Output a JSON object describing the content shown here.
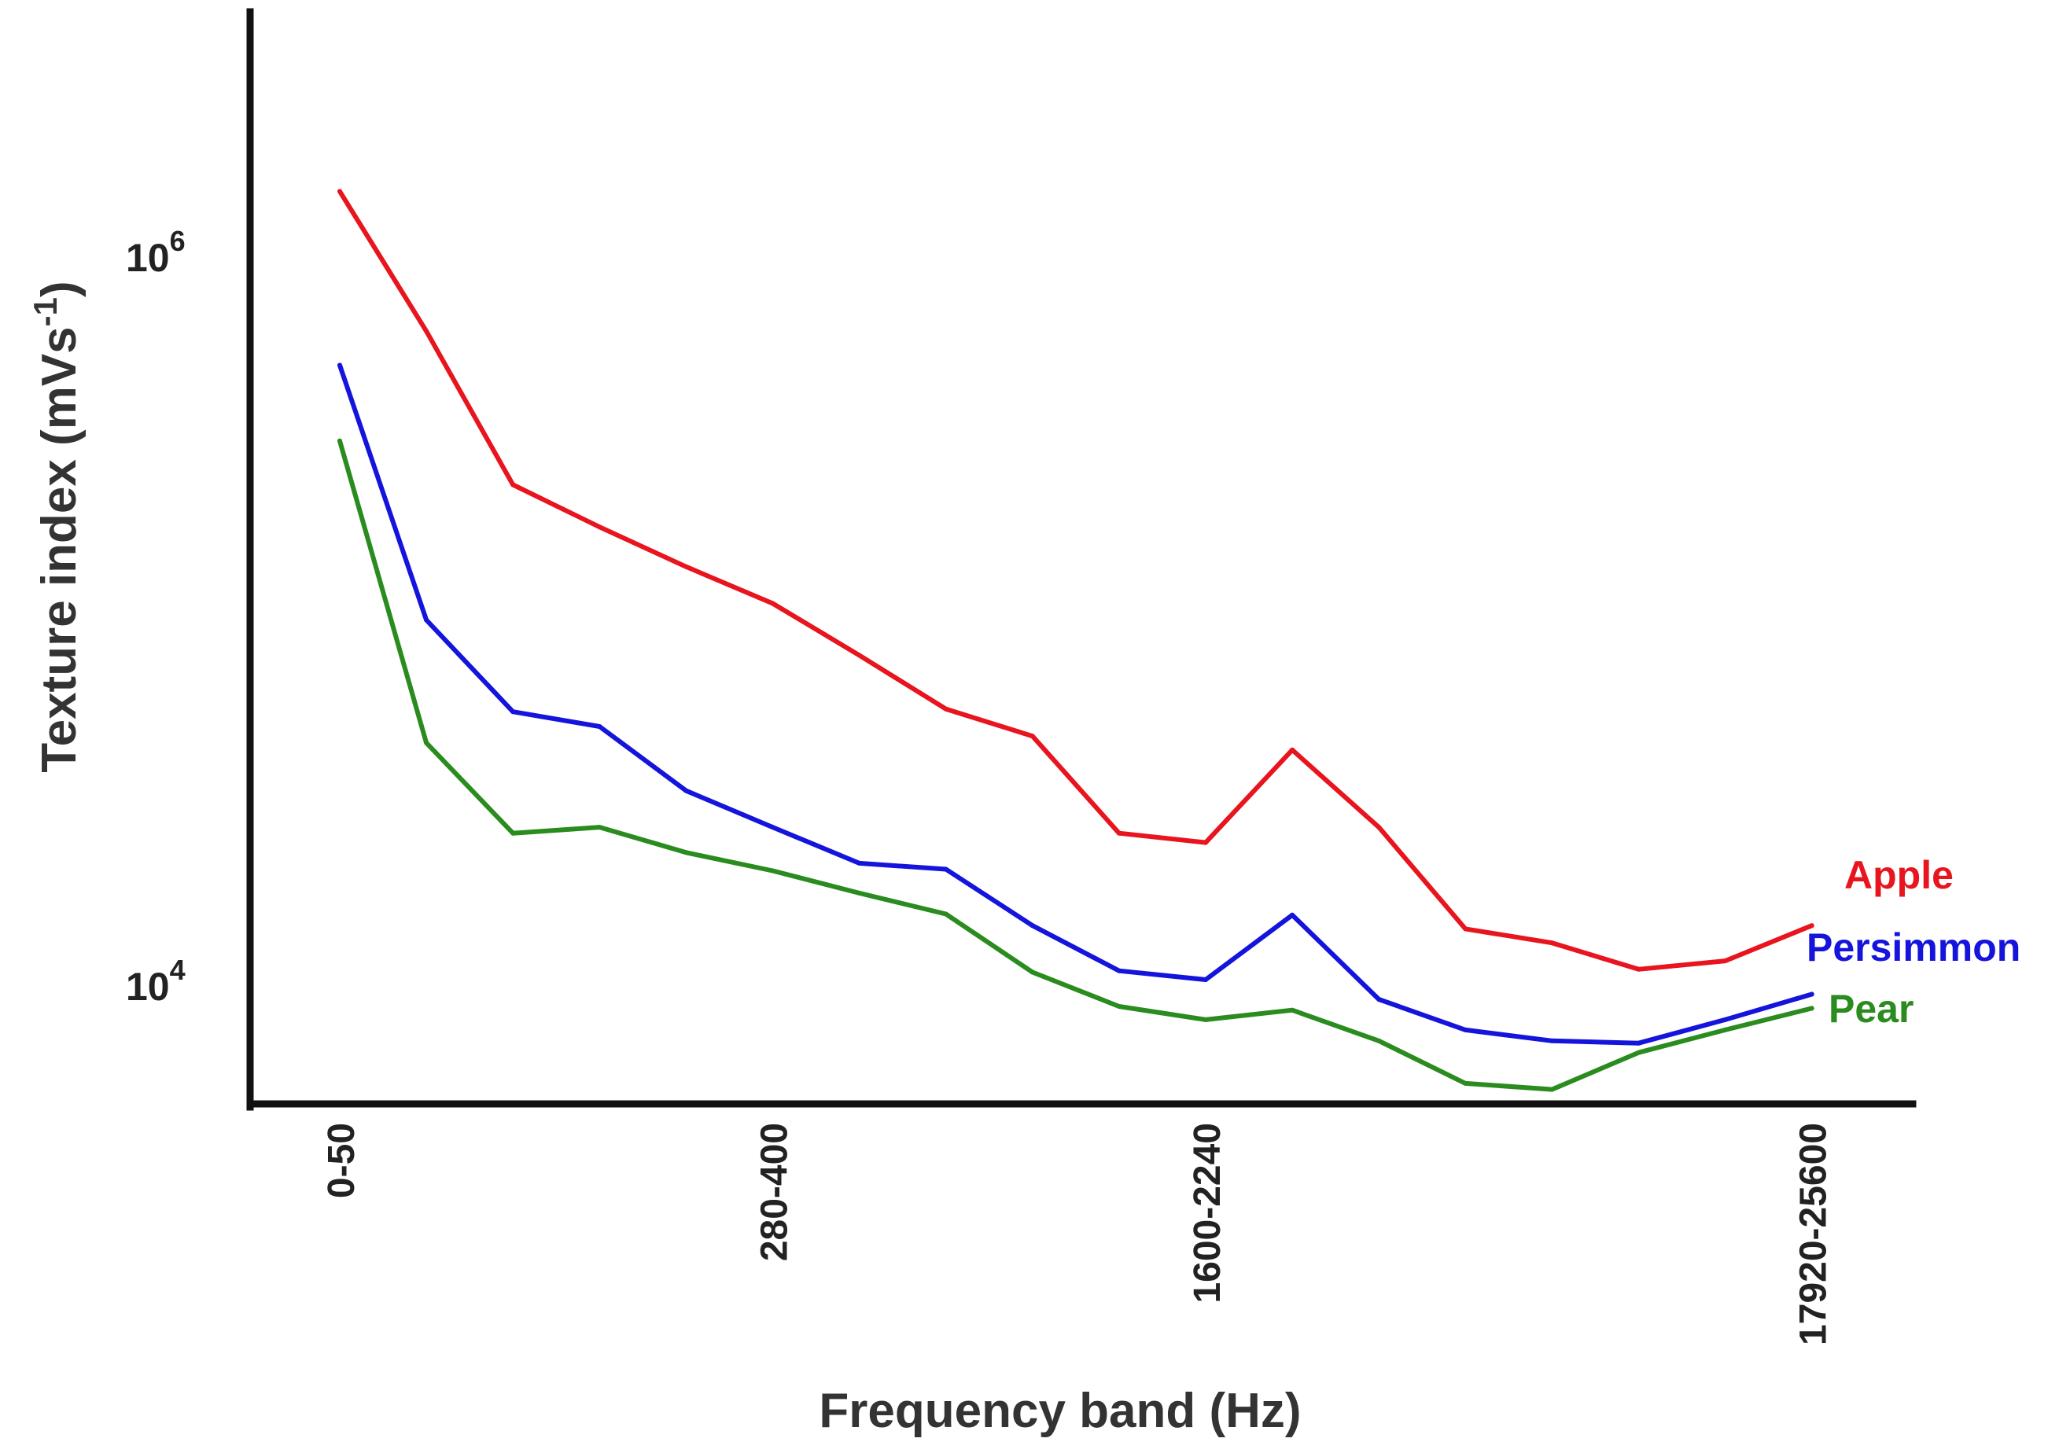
{
  "chart_data": {
    "type": "line",
    "title": "",
    "xlabel": "Frequency band (Hz)",
    "ylabel_main": "Texture index (mVs",
    "ylabel_sup": "-1",
    "ylabel_close": ")",
    "y_scale": "log",
    "ylim": [
      5000,
      6000000
    ],
    "grid": false,
    "x_ticks": [
      {
        "index": 0,
        "label": "0-50"
      },
      {
        "index": 5,
        "label": "280-400"
      },
      {
        "index": 10,
        "label": "1600-2240"
      },
      {
        "index": 17,
        "label": "17920-25600"
      }
    ],
    "y_ticks": [
      {
        "value": 1000000,
        "base": "10",
        "exp": "6"
      },
      {
        "value": 10000,
        "base": "10",
        "exp": "4"
      }
    ],
    "series": [
      {
        "name": "Apple",
        "color": "#e8141e",
        "values": [
          1500000,
          620000,
          235000,
          180000,
          140000,
          111000,
          80000,
          57000,
          48000,
          26000,
          24500,
          44000,
          27000,
          14200,
          13000,
          11000,
          11600,
          14500
        ]
      },
      {
        "name": "Persimmon",
        "color": "#1414dc",
        "values": [
          500000,
          100000,
          56000,
          51000,
          34000,
          27000,
          21500,
          20700,
          14500,
          10900,
          10300,
          15500,
          9100,
          7500,
          7000,
          6900,
          8000,
          9400
        ]
      },
      {
        "name": "Pear",
        "color": "#2a8c1e",
        "values": [
          310000,
          46000,
          26000,
          27000,
          23000,
          20500,
          17800,
          15600,
          10800,
          8700,
          8000,
          8500,
          7000,
          5350,
          5150,
          6500,
          7500,
          8600
        ]
      }
    ],
    "legend": [
      {
        "label": "Apple",
        "color": "#e8141e"
      },
      {
        "label": "Persimmon",
        "color": "#1414dc"
      },
      {
        "label": "Pear",
        "color": "#2a8c1e"
      }
    ]
  }
}
